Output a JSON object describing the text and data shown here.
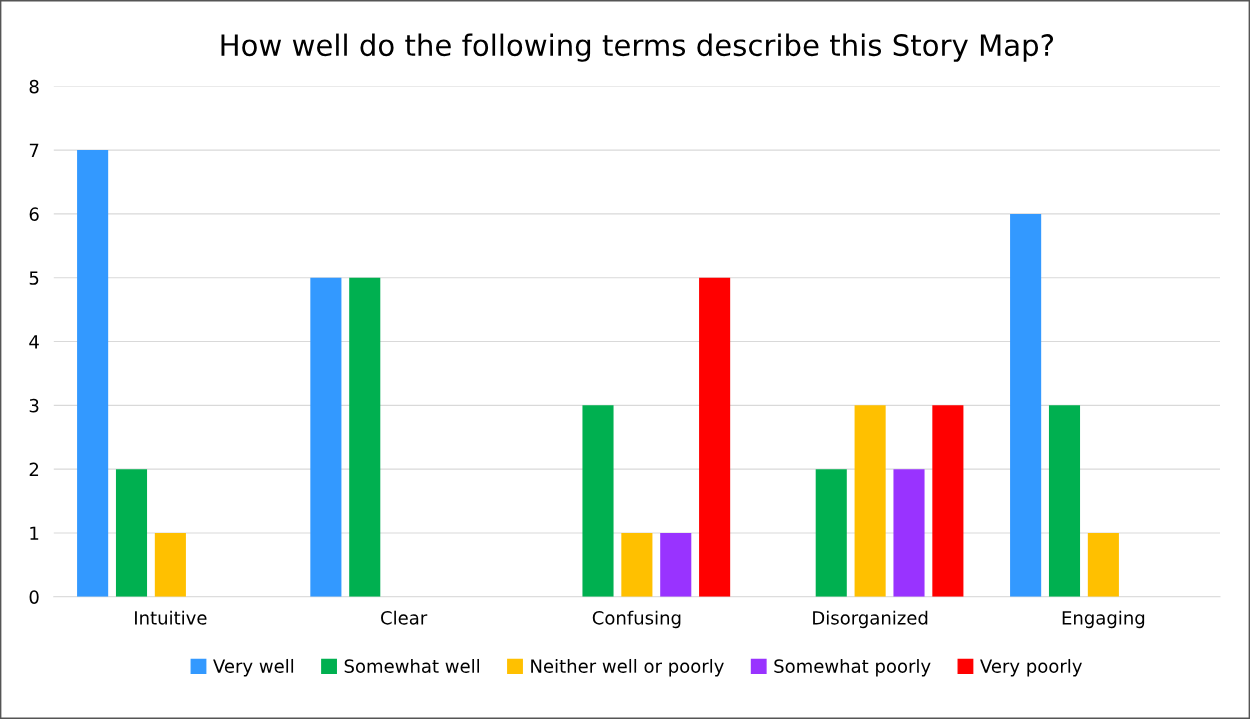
{
  "chart_data": {
    "type": "bar",
    "title": "How well do the following terms describe this Story Map?",
    "categories": [
      "Intuitive",
      "Clear",
      "Confusing",
      "Disorganized",
      "Engaging"
    ],
    "series": [
      {
        "name": "Very well",
        "color": "#3399ff",
        "values": [
          7,
          5,
          0,
          0,
          6
        ]
      },
      {
        "name": "Somewhat well",
        "color": "#00b050",
        "values": [
          2,
          5,
          3,
          2,
          3
        ]
      },
      {
        "name": "Neither well or poorly",
        "color": "#ffc000",
        "values": [
          1,
          0,
          1,
          3,
          1
        ]
      },
      {
        "name": "Somewhat poorly",
        "color": "#9933ff",
        "values": [
          0,
          0,
          1,
          2,
          0
        ]
      },
      {
        "name": "Very poorly",
        "color": "#ff0000",
        "values": [
          0,
          0,
          5,
          3,
          0
        ]
      }
    ],
    "ylim": [
      0,
      8
    ],
    "yticks": [
      0,
      1,
      2,
      3,
      4,
      5,
      6,
      7,
      8
    ],
    "grid": "y",
    "legend": "bottom"
  }
}
